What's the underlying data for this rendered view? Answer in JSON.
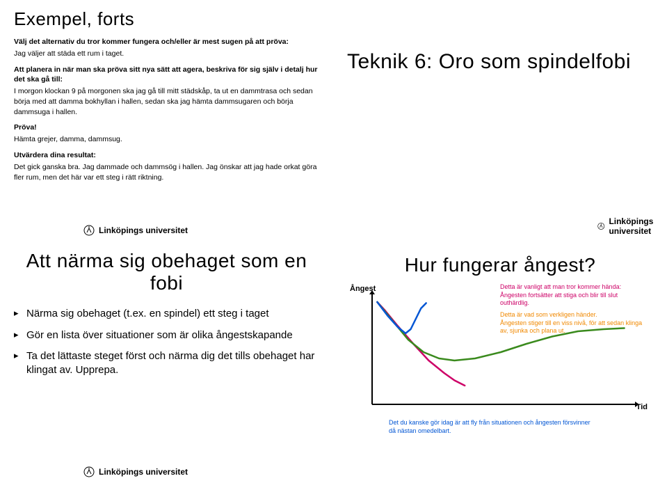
{
  "uni_label": "Linköpings universitet",
  "q1": {
    "title": "Exempel, forts",
    "b1": "Välj det alternativ du tror kommer fungera och/eller är mest sugen på att pröva:",
    "l1": "Jag väljer att städa ett rum i taget.",
    "b2": "Att planera in när man ska pröva sitt nya sätt att agera, beskriva för sig själv i detalj hur det ska gå till:",
    "l2": "I morgon klockan 9 på morgonen ska jag gå till mitt städskåp, ta ut en dammtrasa och sedan börja med att damma bokhyllan i hallen, sedan ska jag hämta dammsugaren och börja dammsuga i hallen.",
    "b3": "Pröva!",
    "l3": "Hämta grejer, damma, dammsug.",
    "b4": "Utvärdera dina resultat:",
    "l4": "Det gick ganska bra. Jag dammade och dammsög i hallen. Jag önskar att jag hade orkat göra fler rum, men det här var ett steg i rätt riktning."
  },
  "q2": {
    "title": "Teknik 6: Oro som spindelfobi"
  },
  "q3": {
    "title": "Att närma sig obehaget som en fobi",
    "bul1": "Närma sig obehaget (t.ex. en spindel) ett steg i taget",
    "bul2": "Gör en lista över situationer som är olika ångestskapande",
    "bul3": "Ta det lättaste steget först och närma dig det tills obehaget har klingat av. Upprepa."
  },
  "q4": {
    "title": "Hur fungerar ångest?",
    "yaxis": "Ångest",
    "xaxis": "Tid",
    "anno_pink": "Detta är vanligt att man tror kommer hända: Ångesten fortsätter att stiga och blir till slut outhärdlig.",
    "anno_orange": "Detta är vad som verkligen händer.\nÅngesten stiger till en viss nivå, för att sedan klinga av, sjunka och plana ut.",
    "anno_blue": "Det du kanske gör idag är att fly från situationen och ångesten försvinner då nästan omedelbart.",
    "chart": {
      "type": "line",
      "xlim": [
        0,
        100
      ],
      "ylim": [
        0,
        100
      ],
      "background": "#ffffff",
      "axis_color": "#000000",
      "axis_width": 2,
      "arrow_size": 6,
      "series": [
        {
          "name": "believed",
          "color": "#cd0067",
          "width": 2.5,
          "points": [
            [
              2,
              98
            ],
            [
              5,
              90
            ],
            [
              10,
              75
            ],
            [
              16,
              58
            ],
            [
              22,
              42
            ],
            [
              28,
              30
            ],
            [
              32,
              23
            ],
            [
              36,
              18
            ]
          ]
        },
        {
          "name": "actual",
          "color": "#3a8a1d",
          "width": 2.5,
          "points": [
            [
              2,
              98
            ],
            [
              8,
              80
            ],
            [
              14,
              62
            ],
            [
              20,
              50
            ],
            [
              26,
              44
            ],
            [
              32,
              42
            ],
            [
              40,
              44
            ],
            [
              50,
              50
            ],
            [
              60,
              58
            ],
            [
              70,
              65
            ],
            [
              80,
              70
            ],
            [
              90,
              72
            ],
            [
              98,
              73
            ]
          ]
        },
        {
          "name": "flee",
          "color": "#0055d4",
          "width": 2.5,
          "points": [
            [
              2,
              98
            ],
            [
              6,
              85
            ],
            [
              10,
              74
            ],
            [
              13,
              68
            ],
            [
              15,
              72
            ],
            [
              17,
              82
            ],
            [
              19,
              92
            ],
            [
              21,
              97
            ]
          ]
        }
      ]
    }
  }
}
